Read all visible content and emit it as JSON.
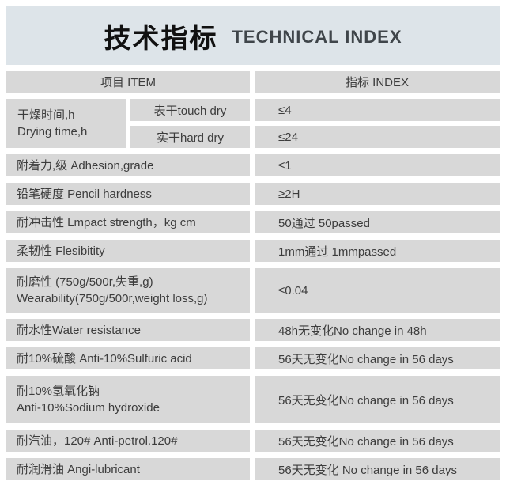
{
  "page": {
    "title_zh": "技术指标",
    "title_en": "TECHNICAL INDEX"
  },
  "table": {
    "header": {
      "item": "项目 ITEM",
      "index": "指标 INDEX"
    },
    "drying": {
      "item": "干燥时间,h\nDrying time,h",
      "sub": [
        {
          "label": "表干touch dry",
          "value": "≤4"
        },
        {
          "label": "实干hard dry",
          "value": "≤24"
        }
      ]
    },
    "rows": [
      {
        "item": "附着力,级 Adhesion,grade",
        "value": "≤1"
      },
      {
        "item": "铅笔硬度 Pencil hardness",
        "value": "≥2H"
      },
      {
        "item": "耐冲击性 Lmpact strength，kg cm",
        "value": "50通过 50passed"
      },
      {
        "item": "柔韧性 Flesibitity",
        "value": "1mm通过 1mmpassed"
      },
      {
        "item": "耐磨性 (750g/500r,失重,g)\nWearability(750g/500r,weight loss,g)",
        "value": "≤0.04"
      },
      {
        "item": "耐水性Water resistance",
        "value": "48h无变化No change in 48h"
      },
      {
        "item": "耐10%硫酸 Anti-10%Sulfuric acid",
        "value": "56天无变化No change in 56 days"
      },
      {
        "item": "耐10%氢氧化钠\nAnti-10%Sodium hydroxide",
        "value": "56天无变化No change in 56 days"
      },
      {
        "item": "耐汽油，120# Anti-petrol.120#",
        "value": "56天无变化No change in 56 days"
      },
      {
        "item": "耐润滑油 Angi-lubricant",
        "value": "56天无变化 No change in 56 days"
      }
    ]
  },
  "colors": {
    "banner_bg": "#dde4e9",
    "cell_bg": "#d8d8d8",
    "text": "#3c3c3c",
    "title_zh": "#111111",
    "title_en": "#3f454a"
  }
}
